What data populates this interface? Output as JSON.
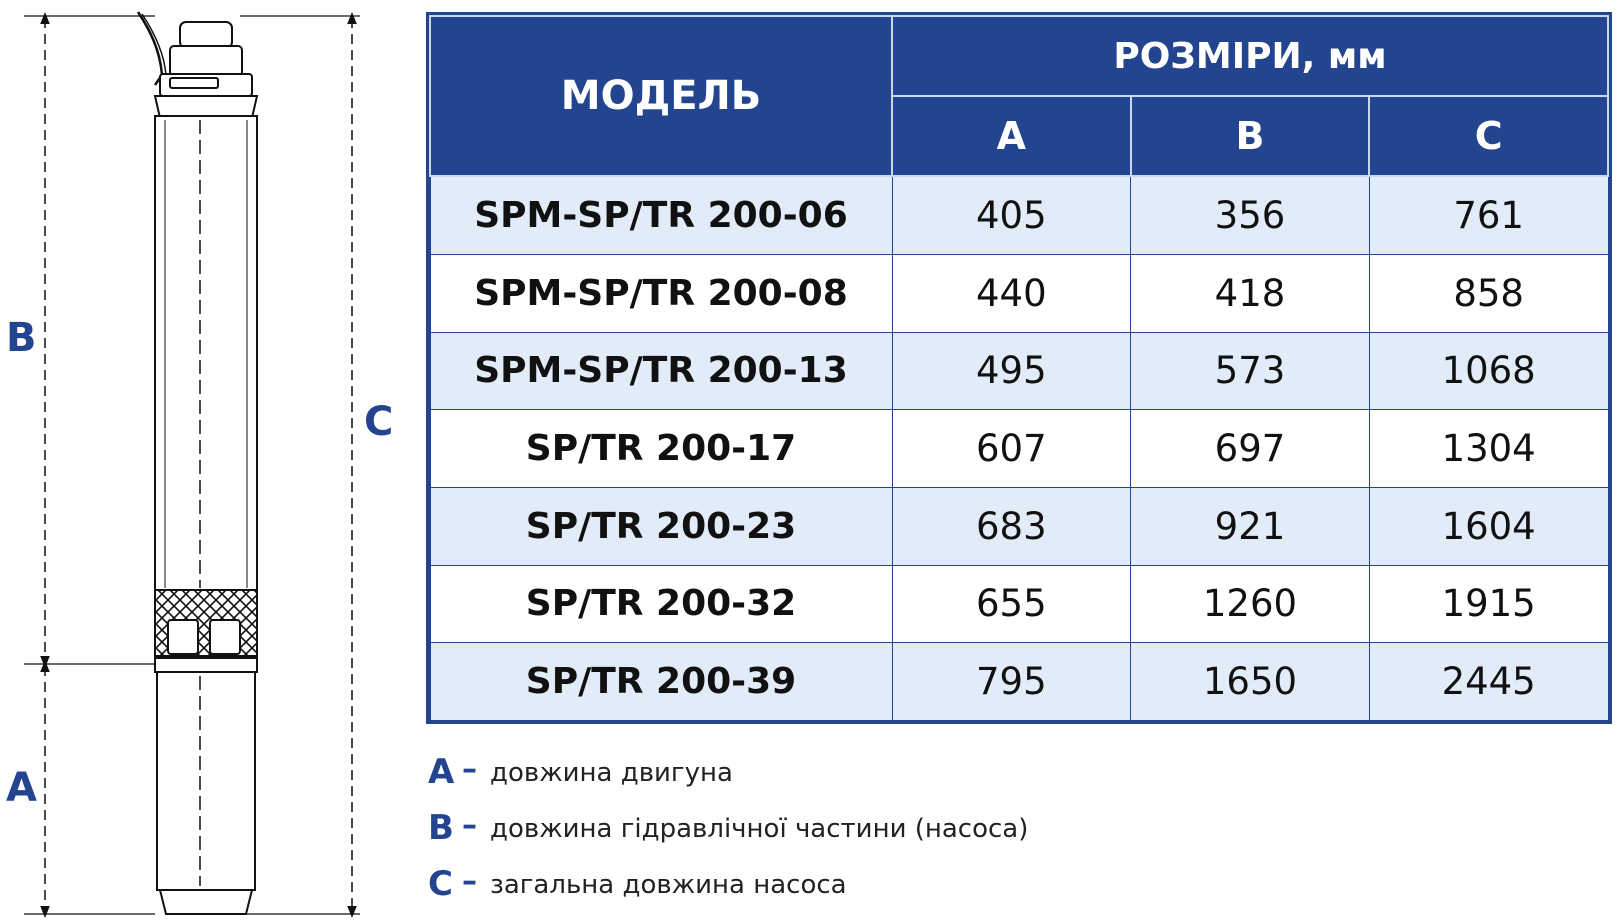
{
  "drawing": {
    "labels": {
      "b": "B",
      "a": "A",
      "c": "C"
    }
  },
  "table": {
    "model_header": "МОДЕЛЬ",
    "dims_header": "РОЗМІРИ, мм",
    "columns": [
      "A",
      "B",
      "C"
    ],
    "rows": [
      {
        "model": "SPM-SP/TR 200-06",
        "a": "405",
        "b": "356",
        "c": "761"
      },
      {
        "model": "SPM-SP/TR 200-08",
        "a": "440",
        "b": "418",
        "c": "858"
      },
      {
        "model": "SPM-SP/TR 200-13",
        "a": "495",
        "b": "573",
        "c": "1068"
      },
      {
        "model": "SP/TR 200-17",
        "a": "607",
        "b": "697",
        "c": "1304"
      },
      {
        "model": "SP/TR 200-23",
        "a": "683",
        "b": "921",
        "c": "1604"
      },
      {
        "model": "SP/TR 200-32",
        "a": "655",
        "b": "1260",
        "c": "1915"
      },
      {
        "model": "SP/TR 200-39",
        "a": "795",
        "b": "1650",
        "c": "2445"
      }
    ]
  },
  "legend": [
    {
      "key": "A",
      "dash": "–",
      "text": "довжина двигуна"
    },
    {
      "key": "B",
      "dash": "–",
      "text": "довжина гідравлічної частини (насоса)"
    },
    {
      "key": "C",
      "dash": "–",
      "text": "загальна довжина насоса"
    }
  ],
  "colors": {
    "brand": "#23448e",
    "row_alt": "#e2ecf8",
    "header_border": "#c9d7ee"
  }
}
